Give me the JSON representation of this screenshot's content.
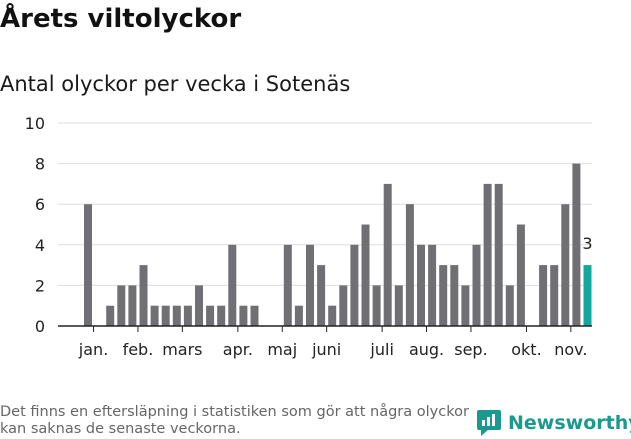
{
  "header": {
    "title": "Årets viltolyckor",
    "subtitle": "Antal olyckor per vecka i Sotenäs"
  },
  "footer": {
    "note": "Det finns en eftersläpning i statistiken som gör att några olyckor kan saknas de senaste veckorna.",
    "brand": "Newsworthy"
  },
  "colors": {
    "bar": "#707074",
    "highlight": "#13a89e",
    "brand": "#1a9a8e",
    "grid": "#dddddd",
    "axis": "#222222"
  },
  "chart_data": {
    "type": "bar",
    "title": "Antal olyckor per vecka i Sotenäs",
    "xlabel": "",
    "ylabel": "",
    "ylim": [
      0,
      10
    ],
    "yticks": [
      0,
      2,
      4,
      6,
      8,
      10
    ],
    "grid": true,
    "weeks": [
      1,
      2,
      3,
      4,
      5,
      6,
      7,
      8,
      9,
      10,
      11,
      12,
      13,
      14,
      15,
      16,
      17,
      18,
      19,
      20,
      21,
      22,
      23,
      24,
      25,
      26,
      27,
      28,
      29,
      30,
      31,
      32,
      33,
      34,
      35,
      36,
      37,
      38,
      39,
      40,
      41,
      42,
      43,
      44,
      45,
      46
    ],
    "values": [
      6,
      0,
      1,
      2,
      2,
      3,
      1,
      1,
      1,
      1,
      2,
      1,
      1,
      4,
      1,
      1,
      0,
      0,
      4,
      1,
      4,
      3,
      1,
      2,
      4,
      5,
      2,
      7,
      2,
      6,
      4,
      4,
      3,
      3,
      2,
      4,
      7,
      7,
      2,
      5,
      0,
      3,
      3,
      6,
      8,
      3
    ],
    "highlight_index": 45,
    "highlight_label": "3",
    "month_labels": [
      {
        "label": "jan.",
        "week": 1.5
      },
      {
        "label": "feb.",
        "week": 5.5
      },
      {
        "label": "mars",
        "week": 9.5
      },
      {
        "label": "apr.",
        "week": 14.5
      },
      {
        "label": "maj",
        "week": 18.5
      },
      {
        "label": "juni",
        "week": 22.5
      },
      {
        "label": "juli",
        "week": 27.5
      },
      {
        "label": "aug.",
        "week": 31.5
      },
      {
        "label": "sep.",
        "week": 35.5
      },
      {
        "label": "okt.",
        "week": 40.5
      },
      {
        "label": "nov.",
        "week": 44.5
      }
    ]
  }
}
